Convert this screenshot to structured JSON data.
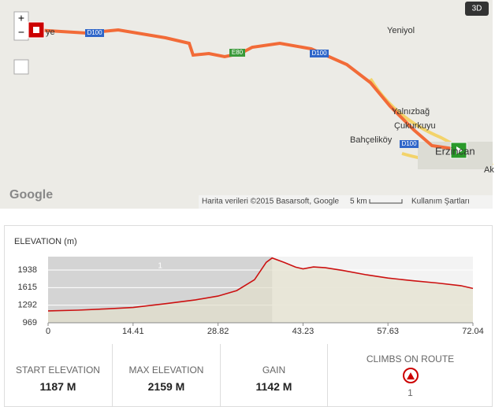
{
  "map": {
    "places": [
      "Yeniyol",
      "Yalnızbağ",
      "Çukurkuyu",
      "Bahçeliköy",
      "Erzincan",
      "Ak",
      "ye"
    ],
    "roads": [
      "D100",
      "E80",
      "D100",
      "D100"
    ],
    "logo": "Google",
    "badge": "3D",
    "zoom_in": "+",
    "zoom_out": "−",
    "attribution": "Harita verileri ©2015 Basarsoft, Google",
    "scale": "5 km",
    "terms": "Kullanım Şartları"
  },
  "chart_data": {
    "type": "area",
    "title": "ELEVATION (m)",
    "x": [
      0,
      5,
      10,
      14.41,
      20,
      25,
      28.82,
      32,
      35,
      37,
      38,
      40,
      42,
      43.23,
      45,
      47,
      50,
      54,
      57.63,
      62,
      66,
      70,
      72.04
    ],
    "values": [
      1187,
      1200,
      1225,
      1250,
      1320,
      1390,
      1460,
      1560,
      1760,
      2080,
      2159,
      2080,
      1990,
      1960,
      1995,
      1980,
      1930,
      1850,
      1790,
      1740,
      1700,
      1650,
      1600
    ],
    "color": "#cc1111",
    "climb": {
      "label": "1",
      "range": [
        0,
        38
      ]
    },
    "xlim": [
      0,
      72.04
    ],
    "xticks": [
      0,
      14.41,
      28.82,
      43.23,
      57.63,
      72.04
    ],
    "ylim": [
      969,
      2184
    ],
    "yticks": [
      969,
      1292,
      1615,
      1938
    ],
    "grid": true
  },
  "stats": [
    {
      "label": "START ELEVATION",
      "value": "1187 M"
    },
    {
      "label": "MAX ELEVATION",
      "value": "2159 M"
    },
    {
      "label": "GAIN",
      "value": "1142 M"
    }
  ],
  "climbs": {
    "label": "CLIMBS ON ROUTE",
    "count": "1"
  }
}
